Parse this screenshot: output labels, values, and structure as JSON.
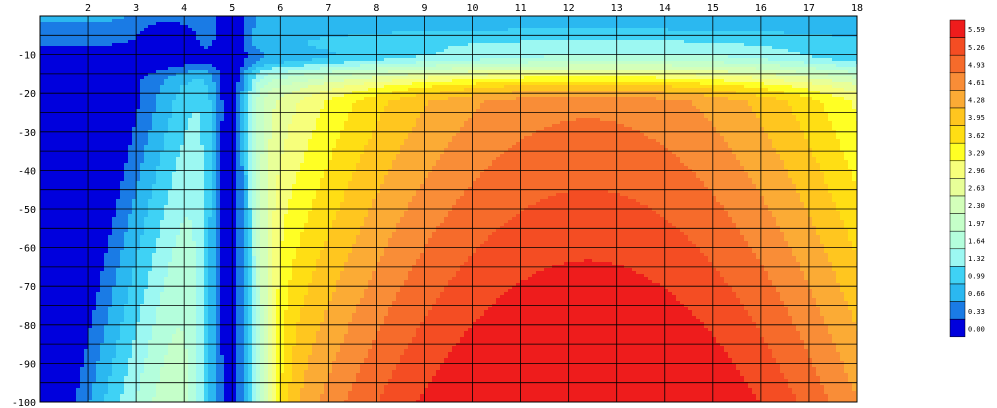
{
  "chart_data": {
    "type": "heatmap",
    "title": "",
    "xlabel": "",
    "ylabel": "",
    "x": [
      1,
      2,
      3,
      4,
      5,
      6,
      7,
      8,
      9,
      10,
      11,
      12,
      13,
      14,
      15,
      16,
      17,
      18
    ],
    "x_tick_labels": [
      "2",
      "3",
      "4",
      "5",
      "6",
      "7",
      "8",
      "9",
      "10",
      "11",
      "12",
      "13",
      "14",
      "15",
      "16",
      "17",
      "18"
    ],
    "xlim": [
      1,
      18
    ],
    "y": [
      0,
      -5,
      -10,
      -15,
      -20,
      -25,
      -30,
      -35,
      -40,
      -45,
      -50,
      -55,
      -60,
      -65,
      -70,
      -75,
      -80,
      -85,
      -90,
      -95,
      -100
    ],
    "y_tick_labels": [
      "-10",
      "-20",
      "-30",
      "-40",
      "-50",
      "-60",
      "-70",
      "-80",
      "-90",
      "-100"
    ],
    "ylim": [
      -100,
      0
    ],
    "grid": true,
    "colorscale": {
      "levels": [
        "5.59",
        "5.26",
        "4.93",
        "4.61",
        "4.28",
        "3.95",
        "3.62",
        "3.29",
        "2.96",
        "2.63",
        "2.30",
        "1.97",
        "1.64",
        "1.32",
        "0.99",
        "0.66",
        "0.33",
        "0.00"
      ],
      "colors": [
        "#ee1c1c",
        "#f44d23",
        "#f66b2b",
        "#f98d37",
        "#fbab35",
        "#ffc61f",
        "#ffde14",
        "#ffff24",
        "#f7ff7b",
        "#e8ff98",
        "#d3ffba",
        "#c5ffc9",
        "#b4fedc",
        "#9cf8f2",
        "#3fd2f5",
        "#2bb8f0",
        "#1a7be5",
        "#0000dd"
      ],
      "placement": "right"
    }
  }
}
